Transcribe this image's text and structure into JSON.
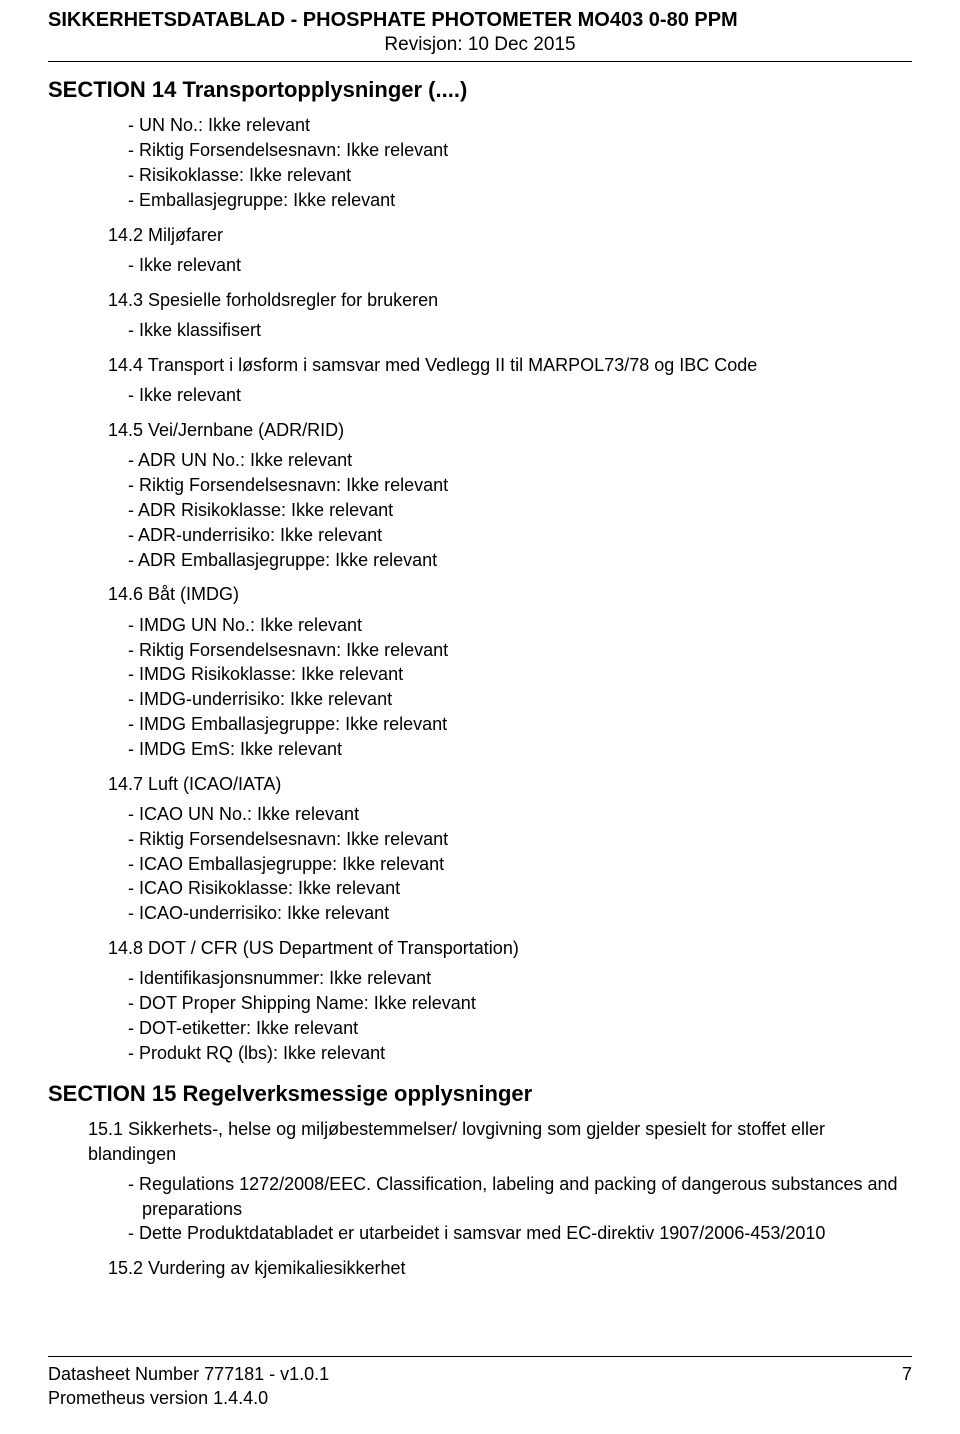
{
  "colors": {
    "text": "#000000",
    "background": "#ffffff",
    "rule": "#000000"
  },
  "typography": {
    "font_family": "Arial",
    "body_pt": 13,
    "heading_pt": 16,
    "header_title_pt": 15
  },
  "header": {
    "title": "SIKKERHETSDATABLAD  -  PHOSPHATE PHOTOMETER MO403 0-80 PPM",
    "revision": "Revisjon: 10  Dec  2015"
  },
  "section14": {
    "heading": "SECTION 14   Transportopplysninger (....)",
    "top_items": [
      "UN No.: Ikke relevant",
      "Riktig Forsendelsesnavn: Ikke relevant",
      "Risikoklasse: Ikke relevant",
      "Emballasjegruppe: Ikke relevant"
    ],
    "s14_2": {
      "heading": "14.2 Miljøfarer",
      "items": [
        "Ikke relevant"
      ]
    },
    "s14_3": {
      "heading": "14.3 Spesielle forholdsregler for brukeren",
      "items": [
        "Ikke klassifisert"
      ]
    },
    "s14_4": {
      "heading": "14.4 Transport i løsform i samsvar med Vedlegg II til MARPOL73/78 og IBC Code",
      "items": [
        "Ikke relevant"
      ]
    },
    "s14_5": {
      "heading": "14.5 Vei/Jernbane (ADR/RID)",
      "items": [
        "ADR UN No.: Ikke relevant",
        "Riktig Forsendelsesnavn: Ikke relevant",
        "ADR Risikoklasse: Ikke relevant",
        "ADR-underrisiko: Ikke relevant",
        "ADR Emballasjegruppe: Ikke relevant"
      ]
    },
    "s14_6": {
      "heading": "14.6 Båt (IMDG)",
      "items": [
        "IMDG UN No.: Ikke relevant",
        "Riktig Forsendelsesnavn: Ikke relevant",
        "IMDG Risikoklasse: Ikke relevant",
        "IMDG-underrisiko: Ikke relevant",
        "IMDG Emballasjegruppe: Ikke relevant",
        "IMDG EmS: Ikke relevant"
      ]
    },
    "s14_7": {
      "heading": "14.7 Luft (ICAO/IATA)",
      "items": [
        "ICAO UN No.: Ikke relevant",
        "Riktig Forsendelsesnavn: Ikke relevant",
        "ICAO Emballasjegruppe: Ikke relevant",
        "ICAO Risikoklasse: Ikke relevant",
        "ICAO-underrisiko: Ikke relevant"
      ]
    },
    "s14_8": {
      "heading": "14.8 DOT / CFR (US Department of Transportation)",
      "items": [
        "Identifikasjonsnummer: Ikke relevant",
        "DOT Proper Shipping Name: Ikke relevant",
        "DOT-etiketter: Ikke relevant",
        "Produkt RQ (lbs): Ikke relevant"
      ]
    }
  },
  "section15": {
    "heading": "SECTION 15   Regelverksmessige opplysninger",
    "s15_1": {
      "para": "15.1 Sikkerhets-, helse og miljøbestemmelser/ lovgivning som gjelder spesielt for stoffet eller blandingen",
      "items": [
        "Regulations 1272/2008/EEC. Classification, labeling and packing of dangerous substances and preparations",
        "Dette Produktdatabladet er utarbeidet i samsvar med EC-direktiv 1907/2006-453/2010"
      ]
    },
    "s15_2": {
      "heading": "15.2 Vurdering av kjemikaliesikkerhet"
    }
  },
  "footer": {
    "datasheet": "Datasheet Number 777181 - v1.0.1",
    "version": "Prometheus version 1.4.4.0",
    "page": "7"
  }
}
